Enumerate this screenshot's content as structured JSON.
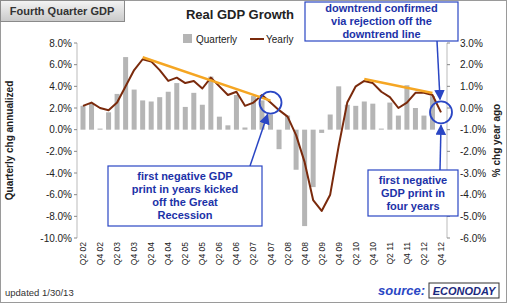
{
  "chart_data": {
    "type": "bar",
    "title": "Real GDP Growth",
    "subtitle": "Fourth Quarter GDP",
    "ylabel": "Quarterly chg annualized",
    "y2label": "% chg year ago",
    "footnote": "updated 1/30/13",
    "source": "source:",
    "source_name": "ECONODAY",
    "legend": "top",
    "grid": false,
    "categories": [
      "Q2 02",
      null,
      "Q4 02",
      null,
      "Q2 03",
      null,
      "Q4 03",
      null,
      "Q2 04",
      null,
      "Q4 04",
      null,
      "Q2 05",
      null,
      "Q4 05",
      null,
      "Q2 06",
      null,
      "Q4 06",
      null,
      "Q2 07",
      null,
      "Q4 07",
      null,
      "Q2 08",
      null,
      "Q4 08",
      null,
      "Q2 09",
      null,
      "Q4 09",
      null,
      "Q2 10",
      null,
      "Q4 10",
      null,
      "Q2 11",
      null,
      "Q4 11",
      null,
      "Q2 12",
      null,
      "Q4 12"
    ],
    "series": [
      {
        "name": "Quarterly",
        "type": "bar",
        "color": "#b5b5b5",
        "values": [
          2.2,
          2.4,
          0.1,
          1.6,
          3.3,
          6.7,
          3.7,
          2.7,
          2.6,
          3.0,
          3.5,
          4.3,
          2.1,
          3.4,
          2.3,
          4.9,
          1.2,
          0.4,
          3.2,
          0.2,
          3.1,
          2.7,
          1.4,
          -1.8,
          1.3,
          -3.7,
          -8.9,
          -5.3,
          -0.3,
          1.4,
          4.0,
          2.3,
          2.2,
          2.6,
          2.4,
          0.1,
          2.5,
          1.3,
          4.1,
          2.0,
          1.3,
          3.1,
          -0.1
        ]
      },
      {
        "name": "Yearly",
        "type": "line",
        "axis": "y2",
        "color": "#7a2a0c",
        "values": [
          0.1,
          0.25,
          0.0,
          -0.1,
          0.25,
          1.0,
          1.75,
          2.25,
          2.15,
          1.75,
          1.25,
          1.4,
          1.15,
          1.25,
          0.9,
          1.4,
          1.0,
          0.6,
          0.75,
          0.1,
          0.25,
          0.6,
          0.25,
          -0.1,
          -0.4,
          -1.25,
          -2.5,
          -4.25,
          -4.75,
          -4.0,
          -1.75,
          0.25,
          1.0,
          1.25,
          1.15,
          0.75,
          0.5,
          0.0,
          0.25,
          0.7,
          0.7,
          0.6,
          -0.2
        ]
      }
    ],
    "ylim": [
      -10,
      8
    ],
    "yticks": [
      {
        "value": 8,
        "label": "8.0%"
      },
      {
        "value": 6,
        "label": "6.0%"
      },
      {
        "value": 4,
        "label": "4.0%"
      },
      {
        "value": 2,
        "label": "2.0%"
      },
      {
        "value": 0,
        "label": "0.0%"
      },
      {
        "value": -2,
        "label": "-2.0%"
      },
      {
        "value": -4,
        "label": "-4.0%"
      },
      {
        "value": -6,
        "label": "-6.0%"
      },
      {
        "value": -8,
        "label": "-8.0%"
      },
      {
        "value": -10,
        "label": "-10.0%"
      }
    ],
    "y2lim": [
      -6,
      3
    ],
    "y2ticks": [
      {
        "value": 3,
        "label": "3.0%"
      },
      {
        "value": 2,
        "label": "2.0%"
      },
      {
        "value": 1,
        "label": "1.0%"
      },
      {
        "value": 0,
        "label": "0.0%"
      },
      {
        "value": -1,
        "label": "-1.0%"
      },
      {
        "value": -2,
        "label": "-2.0%"
      },
      {
        "value": -3,
        "label": "-3.0%"
      },
      {
        "value": -4,
        "label": "-4.0%"
      },
      {
        "value": -5,
        "label": "-5.0%"
      },
      {
        "value": -6,
        "label": "-6.0%"
      }
    ],
    "annotations": [
      {
        "lines": [
          "downtrend confirmed",
          "via rejection off the",
          "downtrend line"
        ]
      },
      {
        "lines": [
          "first negative GDP",
          "print in years kicked",
          "off the Great",
          "Recession"
        ]
      },
      {
        "lines": [
          "first negative",
          "GDP print in",
          "four years"
        ]
      }
    ]
  }
}
